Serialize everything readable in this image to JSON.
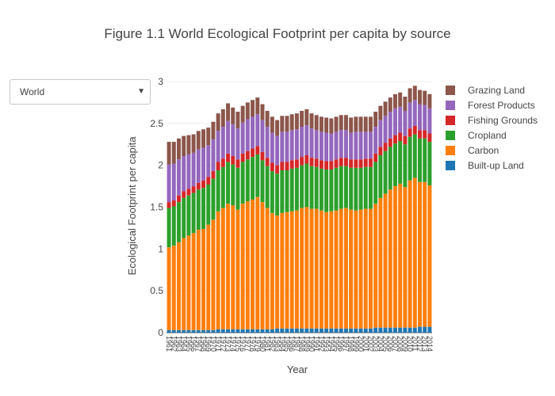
{
  "title": "Figure 1.1 World Ecological Footprint per capita by source",
  "dropdown": {
    "selected": "World"
  },
  "chart_data": {
    "type": "bar",
    "stacked": true,
    "xlabel": "Year",
    "ylabel": "Ecological Footprint per capita",
    "ylim": [
      0,
      3
    ],
    "yticks": [
      "0",
      "0.5",
      "1",
      "1.5",
      "2",
      "2.5",
      "3"
    ],
    "grid": true,
    "legend_position": "right",
    "categories": [
      "1961",
      "1962",
      "1963",
      "1964",
      "1965",
      "1966",
      "1967",
      "1968",
      "1969",
      "1970",
      "1971",
      "1972",
      "1973",
      "1974",
      "1975",
      "1976",
      "1977",
      "1978",
      "1979",
      "1980",
      "1981",
      "1982",
      "1983",
      "1984",
      "1985",
      "1986",
      "1987",
      "1988",
      "1989",
      "1990",
      "1991",
      "1992",
      "1993",
      "1994",
      "1995",
      "1996",
      "1997",
      "1998",
      "1999",
      "2000",
      "2001",
      "2002",
      "2003",
      "2004",
      "2005",
      "2006",
      "2007",
      "2008",
      "2009",
      "2010",
      "2011",
      "2012",
      "2013",
      "2014"
    ],
    "series": [
      {
        "name": "Built-up Land",
        "color": "#1f77b4",
        "values": [
          0.03,
          0.03,
          0.03,
          0.03,
          0.03,
          0.03,
          0.03,
          0.03,
          0.03,
          0.03,
          0.04,
          0.04,
          0.04,
          0.04,
          0.04,
          0.04,
          0.04,
          0.04,
          0.04,
          0.04,
          0.04,
          0.04,
          0.05,
          0.05,
          0.05,
          0.05,
          0.05,
          0.05,
          0.05,
          0.05,
          0.05,
          0.05,
          0.05,
          0.05,
          0.05,
          0.05,
          0.05,
          0.05,
          0.05,
          0.05,
          0.05,
          0.05,
          0.06,
          0.06,
          0.06,
          0.06,
          0.06,
          0.06,
          0.06,
          0.06,
          0.06,
          0.07,
          0.07,
          0.07
        ]
      },
      {
        "name": "Carbon",
        "color": "#ff7f0e",
        "values": [
          0.99,
          1.01,
          1.05,
          1.1,
          1.13,
          1.16,
          1.2,
          1.21,
          1.26,
          1.32,
          1.41,
          1.45,
          1.5,
          1.48,
          1.43,
          1.5,
          1.53,
          1.55,
          1.58,
          1.52,
          1.45,
          1.39,
          1.35,
          1.38,
          1.39,
          1.4,
          1.41,
          1.44,
          1.45,
          1.43,
          1.43,
          1.41,
          1.39,
          1.4,
          1.41,
          1.43,
          1.44,
          1.42,
          1.41,
          1.42,
          1.43,
          1.43,
          1.48,
          1.55,
          1.6,
          1.65,
          1.69,
          1.72,
          1.68,
          1.76,
          1.79,
          1.73,
          1.73,
          1.69
        ]
      },
      {
        "name": "Cropland",
        "color": "#2ca02c",
        "values": [
          0.47,
          0.47,
          0.48,
          0.48,
          0.48,
          0.48,
          0.48,
          0.49,
          0.48,
          0.49,
          0.49,
          0.49,
          0.5,
          0.49,
          0.5,
          0.5,
          0.5,
          0.51,
          0.51,
          0.5,
          0.5,
          0.5,
          0.5,
          0.51,
          0.5,
          0.51,
          0.51,
          0.51,
          0.52,
          0.51,
          0.5,
          0.5,
          0.51,
          0.5,
          0.51,
          0.51,
          0.5,
          0.5,
          0.51,
          0.5,
          0.5,
          0.5,
          0.5,
          0.51,
          0.51,
          0.51,
          0.51,
          0.51,
          0.51,
          0.52,
          0.52,
          0.52,
          0.52,
          0.52
        ]
      },
      {
        "name": "Fishing Grounds",
        "color": "#d62728",
        "values": [
          0.07,
          0.07,
          0.08,
          0.08,
          0.08,
          0.08,
          0.08,
          0.09,
          0.09,
          0.09,
          0.1,
          0.1,
          0.1,
          0.1,
          0.1,
          0.1,
          0.1,
          0.1,
          0.1,
          0.1,
          0.1,
          0.1,
          0.1,
          0.1,
          0.1,
          0.1,
          0.1,
          0.1,
          0.1,
          0.1,
          0.1,
          0.1,
          0.1,
          0.1,
          0.1,
          0.1,
          0.1,
          0.1,
          0.1,
          0.1,
          0.1,
          0.1,
          0.1,
          0.1,
          0.1,
          0.1,
          0.1,
          0.1,
          0.1,
          0.1,
          0.1,
          0.1,
          0.1,
          0.1
        ]
      },
      {
        "name": "Forest Products",
        "color": "#9467bd",
        "values": [
          0.45,
          0.44,
          0.43,
          0.42,
          0.41,
          0.4,
          0.4,
          0.39,
          0.38,
          0.38,
          0.37,
          0.38,
          0.39,
          0.38,
          0.37,
          0.37,
          0.38,
          0.38,
          0.38,
          0.38,
          0.37,
          0.36,
          0.35,
          0.36,
          0.36,
          0.36,
          0.36,
          0.36,
          0.36,
          0.35,
          0.34,
          0.34,
          0.34,
          0.33,
          0.33,
          0.33,
          0.33,
          0.32,
          0.33,
          0.33,
          0.32,
          0.32,
          0.32,
          0.32,
          0.32,
          0.32,
          0.32,
          0.31,
          0.3,
          0.31,
          0.31,
          0.31,
          0.3,
          0.3
        ]
      },
      {
        "name": "Grazing Land",
        "color": "#8c564b",
        "values": [
          0.27,
          0.26,
          0.25,
          0.24,
          0.23,
          0.22,
          0.22,
          0.22,
          0.21,
          0.21,
          0.21,
          0.21,
          0.21,
          0.2,
          0.2,
          0.2,
          0.2,
          0.2,
          0.2,
          0.19,
          0.19,
          0.19,
          0.19,
          0.19,
          0.19,
          0.19,
          0.19,
          0.19,
          0.19,
          0.18,
          0.18,
          0.18,
          0.18,
          0.18,
          0.18,
          0.18,
          0.18,
          0.18,
          0.18,
          0.18,
          0.18,
          0.18,
          0.18,
          0.17,
          0.17,
          0.17,
          0.17,
          0.17,
          0.17,
          0.17,
          0.17,
          0.17,
          0.17,
          0.17
        ]
      }
    ]
  }
}
